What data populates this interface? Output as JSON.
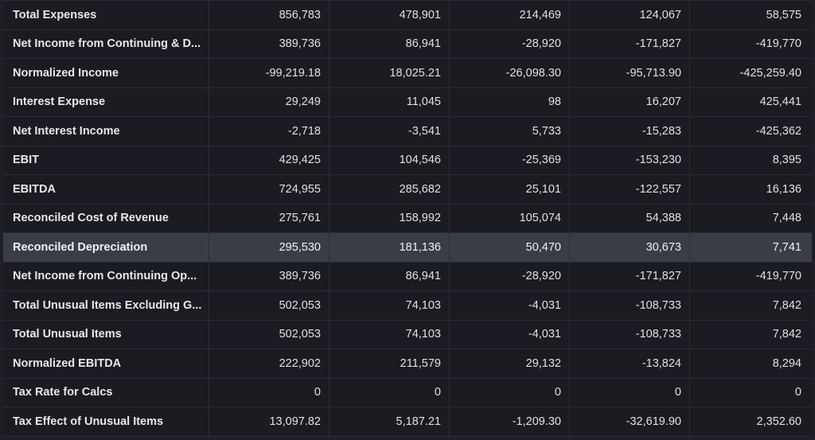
{
  "table": {
    "rows": [
      {
        "label": "Total Expenses",
        "values": [
          "856,783",
          "478,901",
          "214,469",
          "124,067",
          "58,575"
        ]
      },
      {
        "label": "Net Income from Continuing & D...",
        "values": [
          "389,736",
          "86,941",
          "-28,920",
          "-171,827",
          "-419,770"
        ]
      },
      {
        "label": "Normalized Income",
        "values": [
          "-99,219.18",
          "18,025.21",
          "-26,098.30",
          "-95,713.90",
          "-425,259.40"
        ]
      },
      {
        "label": "Interest Expense",
        "values": [
          "29,249",
          "11,045",
          "98",
          "16,207",
          "425,441"
        ]
      },
      {
        "label": "Net Interest Income",
        "values": [
          "-2,718",
          "-3,541",
          "5,733",
          "-15,283",
          "-425,362"
        ]
      },
      {
        "label": "EBIT",
        "values": [
          "429,425",
          "104,546",
          "-25,369",
          "-153,230",
          "8,395"
        ]
      },
      {
        "label": "EBITDA",
        "values": [
          "724,955",
          "285,682",
          "25,101",
          "-122,557",
          "16,136"
        ]
      },
      {
        "label": "Reconciled Cost of Revenue",
        "values": [
          "275,761",
          "158,992",
          "105,074",
          "54,388",
          "7,448"
        ]
      },
      {
        "label": "Reconciled Depreciation",
        "values": [
          "295,530",
          "181,136",
          "50,470",
          "30,673",
          "7,741"
        ]
      },
      {
        "label": "Net Income from Continuing Op...",
        "values": [
          "389,736",
          "86,941",
          "-28,920",
          "-171,827",
          "-419,770"
        ]
      },
      {
        "label": "Total Unusual Items Excluding G...",
        "values": [
          "502,053",
          "74,103",
          "-4,031",
          "-108,733",
          "7,842"
        ]
      },
      {
        "label": "Total Unusual Items",
        "values": [
          "502,053",
          "74,103",
          "-4,031",
          "-108,733",
          "7,842"
        ]
      },
      {
        "label": "Normalized EBITDA",
        "values": [
          "222,902",
          "211,579",
          "29,132",
          "-13,824",
          "8,294"
        ]
      },
      {
        "label": "Tax Rate for Calcs",
        "values": [
          "0",
          "0",
          "0",
          "0",
          "0"
        ]
      },
      {
        "label": "Tax Effect of Unusual Items",
        "values": [
          "13,097.82",
          "5,187.21",
          "-1,209.30",
          "-32,619.90",
          "2,352.60"
        ]
      }
    ]
  },
  "colors": {
    "background": "#1e2026",
    "row_background": "#1a1c21",
    "row_highlight": "#3a3e44",
    "border": "#2b2e35",
    "text": "#e9eaec"
  }
}
